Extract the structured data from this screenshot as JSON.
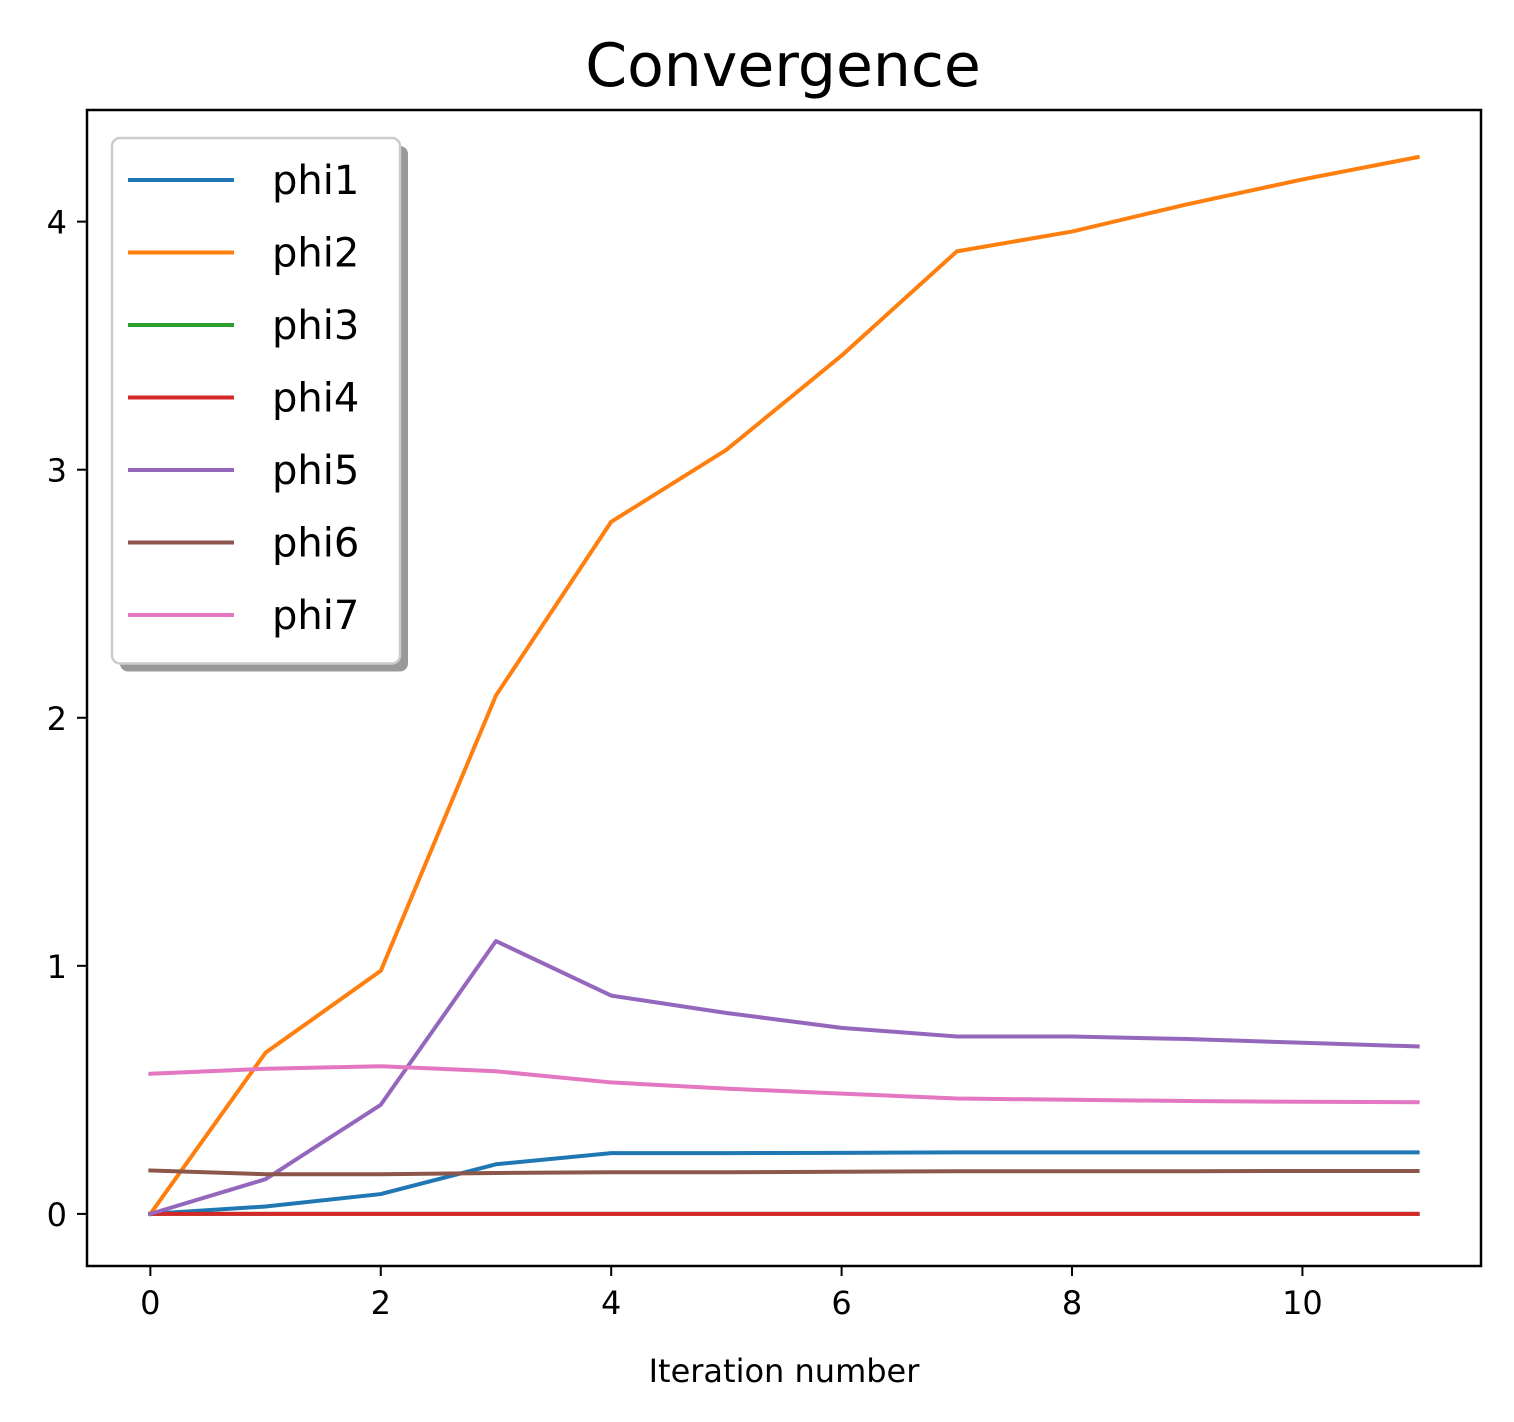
{
  "chart_data": {
    "type": "line",
    "title": "Convergence",
    "xlabel": "Iteration number",
    "ylabel": "",
    "xlim": [
      -0.55,
      11.55
    ],
    "ylim": [
      -0.21,
      4.45
    ],
    "xticks": [
      0,
      2,
      4,
      6,
      8,
      10
    ],
    "yticks": [
      0,
      1,
      2,
      3,
      4
    ],
    "grid": false,
    "legend_position": "upper-left",
    "x": [
      0,
      1,
      2,
      3,
      4,
      5,
      6,
      7,
      8,
      9,
      10,
      11
    ],
    "series": [
      {
        "name": "phi1",
        "color": "#1f77b4",
        "values": [
          0,
          0.03,
          0.08,
          0.2,
          0.245,
          0.245,
          0.246,
          0.248,
          0.248,
          0.248,
          0.248,
          0.248
        ]
      },
      {
        "name": "phi2",
        "color": "#ff7f0e",
        "values": [
          0,
          0.65,
          0.98,
          2.09,
          2.79,
          3.08,
          3.46,
          3.88,
          3.96,
          4.07,
          4.17,
          4.26
        ]
      },
      {
        "name": "phi3",
        "color": "#2ca02c",
        "values": [
          0,
          0,
          0,
          0,
          0,
          0,
          0,
          0,
          0,
          0,
          0,
          0
        ]
      },
      {
        "name": "phi4",
        "color": "#d62728",
        "values": [
          0,
          0,
          0,
          0,
          0,
          0,
          0,
          0,
          0,
          0,
          0,
          0
        ]
      },
      {
        "name": "phi5",
        "color": "#9467bd",
        "values": [
          0,
          0.14,
          0.44,
          1.1,
          0.88,
          0.81,
          0.75,
          0.715,
          0.715,
          0.705,
          0.69,
          0.675
        ]
      },
      {
        "name": "phi6",
        "color": "#8c564b",
        "values": [
          0.175,
          0.16,
          0.16,
          0.165,
          0.168,
          0.168,
          0.17,
          0.172,
          0.172,
          0.172,
          0.173,
          0.173
        ]
      },
      {
        "name": "phi7",
        "color": "#e377c2",
        "values": [
          0.565,
          0.585,
          0.595,
          0.575,
          0.53,
          0.505,
          0.485,
          0.465,
          0.46,
          0.455,
          0.452,
          0.45
        ]
      }
    ]
  }
}
